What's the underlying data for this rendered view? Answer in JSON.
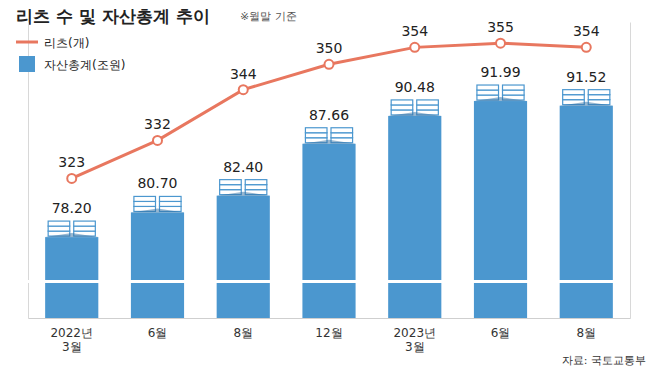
{
  "chart_data": {
    "type": "bar",
    "title": "리츠 수 및 자산총계 추이",
    "subtitle": "※월말 기준",
    "source": "자료: 국토교통부",
    "categories": [
      "2022년\n3월",
      "6월",
      "8월",
      "12월",
      "2023년\n3월",
      "6월",
      "8월"
    ],
    "series": [
      {
        "name": "리츠(개)",
        "type": "line",
        "axis": "y2",
        "color": "#e8775f",
        "marker": "circle",
        "values": [
          323,
          332,
          344,
          350,
          354,
          355,
          354
        ]
      },
      {
        "name": "자산총계(조원)",
        "type": "bar",
        "color": "#4b97cf",
        "values": [
          78.2,
          80.7,
          82.4,
          87.66,
          90.48,
          91.99,
          91.52
        ],
        "value_labels": [
          "78.20",
          "80.70",
          "82.40",
          "87.66",
          "90.48",
          "91.99",
          "91.52"
        ]
      }
    ],
    "ylim": [
      70,
      100
    ],
    "y2lim": [
      290,
      360
    ],
    "tick_labels": false,
    "data_labels": true,
    "legend": "top-left",
    "grid": false
  }
}
